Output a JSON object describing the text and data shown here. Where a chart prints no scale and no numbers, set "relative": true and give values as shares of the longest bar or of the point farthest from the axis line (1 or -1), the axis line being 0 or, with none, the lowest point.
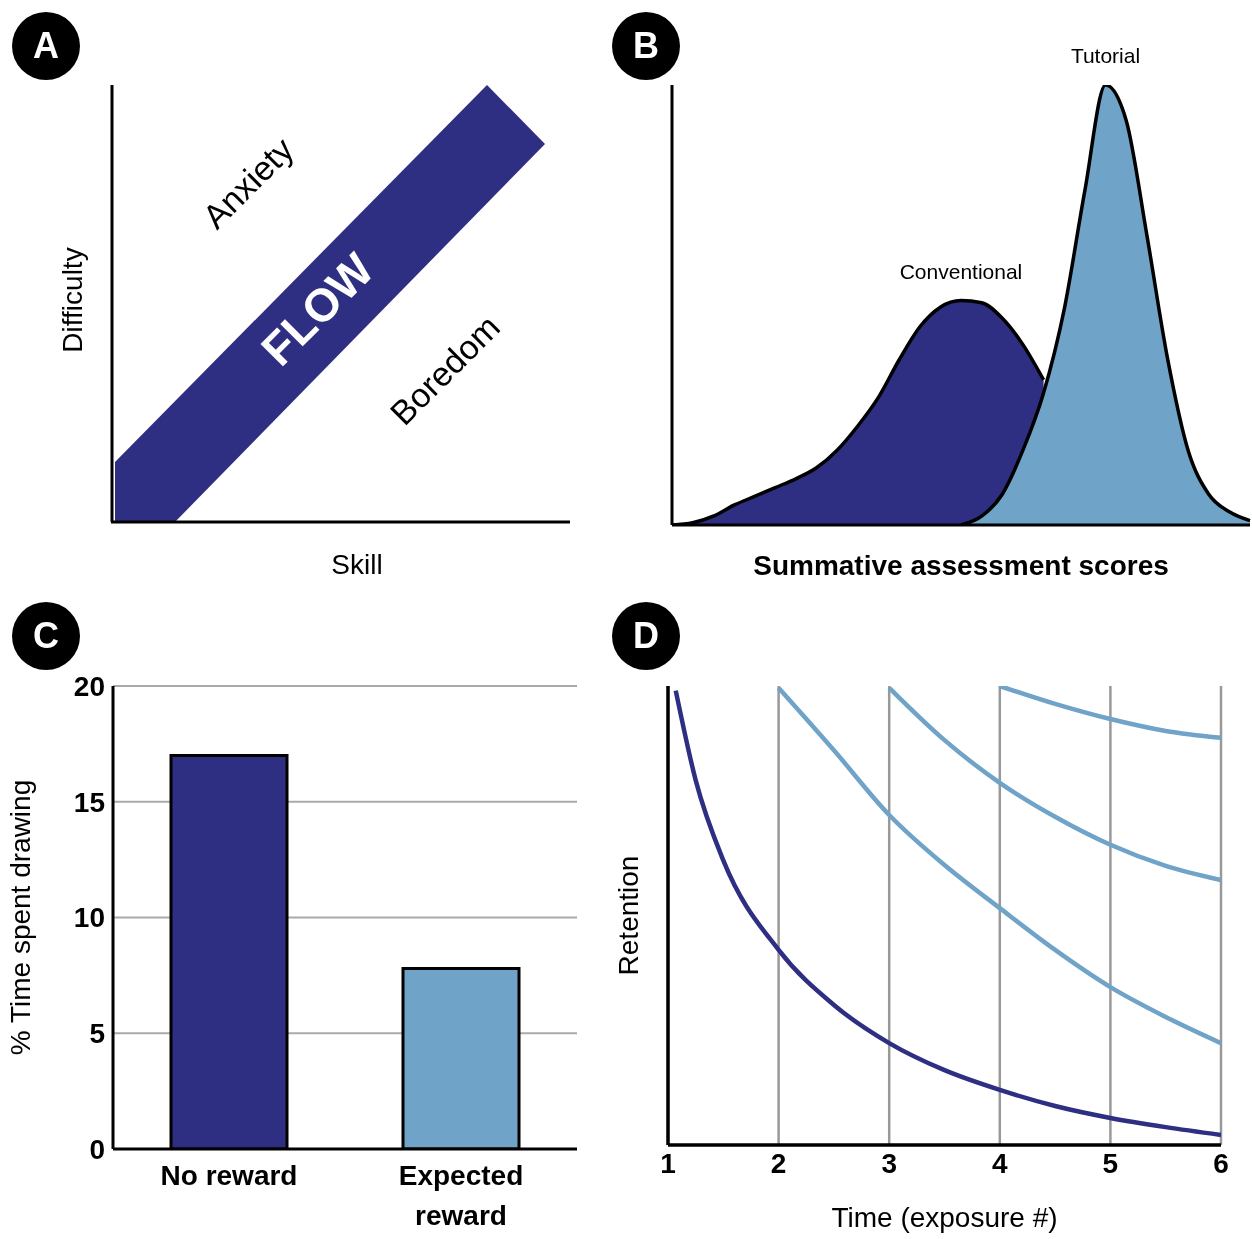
{
  "chart_data": [
    {
      "type": "other",
      "title": "A",
      "xlabel": "Skill",
      "ylabel": "Difficulty",
      "annotations": [
        "Anxiety",
        "FLOW",
        "Boredom"
      ]
    },
    {
      "type": "area",
      "title": "B",
      "xlabel": "Summative assessment scores",
      "relative": true,
      "categories": [
        null,
        null,
        null,
        null,
        null,
        null,
        null,
        null,
        null,
        null,
        null,
        null,
        null,
        null,
        null,
        null,
        null,
        null,
        null,
        null,
        null,
        null,
        null,
        null,
        null,
        null,
        null,
        null,
        null
      ],
      "series": [
        {
          "name": "Conventional",
          "color": "#2e2f82",
          "values": [
            0,
            0.005,
            0.02,
            0.045,
            0.065,
            0.085,
            0.105,
            0.13,
            0.17,
            0.225,
            0.29,
            0.375,
            0.45,
            0.495,
            0.51,
            0.505,
            0.47,
            0.41,
            0.33,
            null,
            null,
            null,
            null,
            null,
            null,
            null,
            null,
            null,
            null
          ]
        },
        {
          "name": "Tutorial",
          "color": "#6fa3c8",
          "values": [
            null,
            null,
            null,
            null,
            null,
            null,
            null,
            null,
            null,
            null,
            null,
            null,
            null,
            null,
            0,
            0.02,
            0.07,
            0.17,
            0.3,
            0.49,
            0.76,
            1,
            0.92,
            0.66,
            0.38,
            0.17,
            0.07,
            0.03,
            0.01
          ]
        }
      ]
    },
    {
      "type": "bar",
      "title": "C",
      "categories": [
        "No reward",
        "Expected reward"
      ],
      "values": [
        17,
        7.8
      ],
      "colors": [
        "#2e2f82",
        "#6fa3c8"
      ],
      "ylabel": "% Time spent drawing",
      "ylim": [
        0,
        20
      ],
      "yticks": [
        0,
        5,
        10,
        15,
        20
      ],
      "grid": "y"
    },
    {
      "type": "line",
      "title": "D",
      "xlabel": "Time (exposure #)",
      "ylabel": "Retention",
      "relative": true,
      "xlim": [
        1,
        6
      ],
      "xticks": [
        1,
        2,
        3,
        4,
        5,
        6
      ],
      "grid": "x",
      "series": [
        {
          "color": "#2e2f82",
          "x": [
            1.07,
            1.25,
            1.5,
            2,
            2.5,
            3,
            3.5,
            4,
            4.5,
            5,
            5.5,
            6
          ],
          "values": [
            0.99,
            0.795,
            0.62,
            0.425,
            0.305,
            0.222,
            0.163,
            0.12,
            0.085,
            0.059,
            0.039,
            0.022
          ]
        },
        {
          "color": "#6fa3c8",
          "x": [
            2,
            2.5,
            3,
            3.5,
            4,
            4.5,
            5,
            5.5,
            6
          ],
          "values": [
            0.996,
            0.86,
            0.719,
            0.61,
            0.516,
            0.425,
            0.344,
            0.279,
            0.222
          ]
        },
        {
          "color": "#6fa3c8",
          "x": [
            3,
            3.5,
            4,
            4.5,
            5,
            5.5,
            6
          ],
          "values": [
            0.996,
            0.882,
            0.789,
            0.715,
            0.654,
            0.608,
            0.577
          ]
        },
        {
          "color": "#6fa3c8",
          "x": [
            4,
            4.5,
            5,
            5.5,
            6
          ],
          "values": [
            1,
            0.961,
            0.928,
            0.902,
            0.887
          ]
        }
      ]
    }
  ]
}
